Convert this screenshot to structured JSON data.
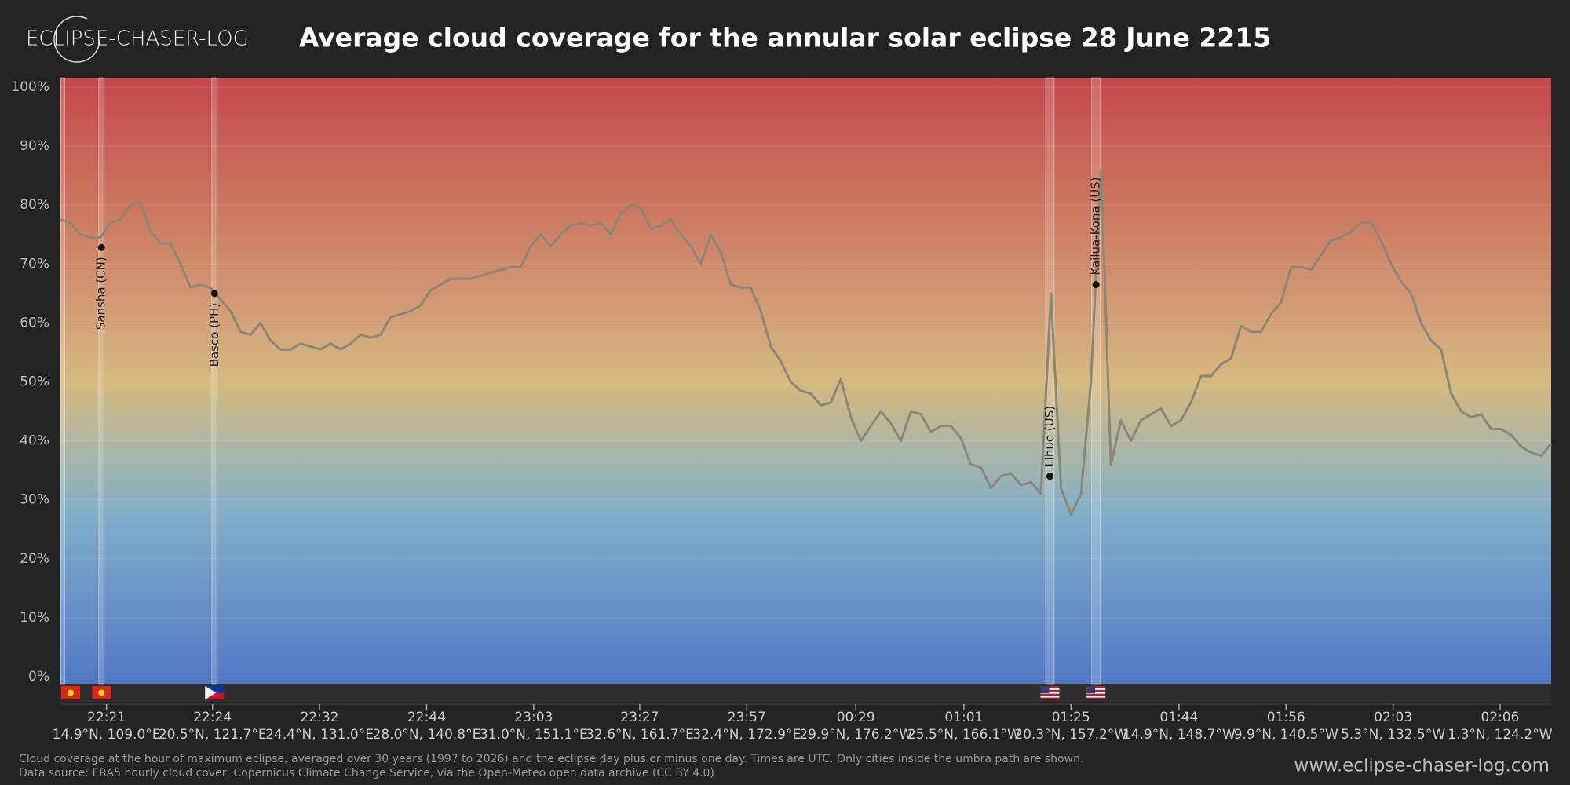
{
  "logo": "ECLIPSE-CHASER-LOG",
  "footnote": [
    "Cloud coverage at the hour of maximum eclipse, averaged over 30 years (1997 to 2026) and the eclipse day plus or minus one day. Times are UTC. Only cities inside the umbra path are shown.",
    "Data source: ERA5 hourly cloud cover, Copernicus Climate Change Service, via the Open-Meteo open data archive (CC BY 4.0)"
  ],
  "url": "www.eclipse-chaser-log.com",
  "chart_data": {
    "type": "line",
    "title": "Average cloud coverage for the annular solar eclipse 28 June 2215",
    "series": [
      {
        "color": "#8a8778",
        "values": [
          77.5,
          77,
          75,
          74.5,
          74.5,
          77,
          77.5,
          80,
          80.5,
          75.5,
          73.5,
          73.5,
          70,
          66,
          66.5,
          66,
          64,
          62,
          58.5,
          58,
          60,
          57,
          55.5,
          55.5,
          56.5,
          56,
          55.5,
          56.5,
          55.5,
          56.5,
          58,
          57.5,
          58,
          61,
          61.5,
          62,
          63,
          65.5,
          66.5,
          67.5,
          67.5,
          67.5,
          68,
          68.5,
          69,
          69.5,
          69.5,
          73,
          75,
          73,
          75,
          76.5,
          77,
          76.5,
          77,
          75,
          78.5,
          80,
          79.5,
          76,
          76.5,
          77.5,
          75,
          73,
          70,
          75,
          72,
          66.5,
          66,
          66,
          62,
          56,
          53.5,
          50,
          48.5,
          48,
          46,
          46.5,
          50.5,
          44,
          40,
          42.5,
          45,
          43,
          40,
          45,
          44.5,
          41.5,
          42.5,
          42.5,
          40.5,
          36,
          35.5,
          32,
          34,
          34.5,
          32.5,
          33,
          31,
          65,
          32,
          27.5,
          31,
          50,
          86,
          36,
          43.5,
          40,
          43.5,
          44.5,
          45.5,
          42.5,
          43.5,
          46.5,
          51,
          51,
          53,
          54,
          59.5,
          58.5,
          58.5,
          61.5,
          63.5,
          69.5,
          69.5,
          69,
          71.5,
          74,
          74.5,
          75.5,
          77,
          77,
          74,
          70,
          67,
          65,
          60,
          57,
          55.5,
          48,
          45,
          44,
          44.5,
          42,
          42,
          41,
          39,
          38,
          37.5,
          39.5
        ]
      }
    ],
    "xlim": [
      0,
      149
    ],
    "ylim": [
      0,
      100
    ],
    "yticks": [
      {
        "value": 0,
        "label": "0%"
      },
      {
        "value": 10,
        "label": "10%"
      },
      {
        "value": 20,
        "label": "20%"
      },
      {
        "value": 30,
        "label": "30%"
      },
      {
        "value": 40,
        "label": "40%"
      },
      {
        "value": 50,
        "label": "50%"
      },
      {
        "value": 60,
        "label": "60%"
      },
      {
        "value": 70,
        "label": "70%"
      },
      {
        "value": 80,
        "label": "80%"
      },
      {
        "value": 90,
        "label": "90%"
      },
      {
        "value": 100,
        "label": "100%"
      }
    ],
    "xticks": [
      {
        "value": 4.6,
        "label": "22:21"
      },
      {
        "value": 15.2,
        "label": "22:24"
      },
      {
        "value": 25.9,
        "label": "22:32"
      },
      {
        "value": 36.6,
        "label": "22:44"
      },
      {
        "value": 47.3,
        "label": "23:03"
      },
      {
        "value": 57.9,
        "label": "23:27"
      },
      {
        "value": 68.6,
        "label": "23:57"
      },
      {
        "value": 79.5,
        "label": "00:29"
      },
      {
        "value": 90.3,
        "label": "01:01"
      },
      {
        "value": 101.0,
        "label": "01:25"
      },
      {
        "value": 111.8,
        "label": "01:44"
      },
      {
        "value": 122.5,
        "label": "01:56"
      },
      {
        "value": 133.2,
        "label": "02:03"
      },
      {
        "value": 143.9,
        "label": "02:06"
      }
    ],
    "xtick_coordinates": [
      "14.9°N, 109.0°E",
      "20.5°N, 121.7°E",
      "24.4°N, 131.0°E",
      "28.0°N, 140.8°E",
      "31.0°N, 151.1°E",
      "32.6°N, 161.7°E",
      "32.4°N, 172.9°E",
      "29.9°N, 176.2°W",
      "25.5°N, 166.1°W",
      "20.3°N, 157.2°W",
      "14.9°N, 148.7°W",
      "9.9°N, 140.5°W",
      "5.3°N, 132.5°W",
      "1.3°N, 124.2°W"
    ],
    "cities": [
      {
        "name": "Sansha (CN)",
        "x": 4.1,
        "value": 72.8
      },
      {
        "name": "Basco (PH)",
        "x": 15.4,
        "value": 65
      },
      {
        "name": "Lihue (US)",
        "x": 98.9,
        "value": 34
      },
      {
        "name": "Kailua-Kona (US)",
        "x": 103.5,
        "value": 66.5
      }
    ]
  }
}
